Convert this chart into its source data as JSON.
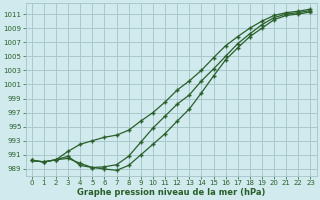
{
  "bg_color": "#d0eaee",
  "grid_color": "#aac8cc",
  "line_color": "#2a5f2a",
  "xlabel": "Graphe pression niveau de la mer (hPa)",
  "xlim": [
    -0.5,
    23.5
  ],
  "ylim": [
    988.0,
    1012.5
  ],
  "yticks": [
    989,
    991,
    993,
    995,
    997,
    999,
    1001,
    1003,
    1005,
    1007,
    1009,
    1011
  ],
  "xticks": [
    0,
    1,
    2,
    3,
    4,
    5,
    6,
    7,
    8,
    9,
    10,
    11,
    12,
    13,
    14,
    15,
    16,
    17,
    18,
    19,
    20,
    21,
    22,
    23
  ],
  "series1_x": [
    0,
    1,
    2,
    3,
    4,
    5,
    6,
    7,
    8,
    9,
    10,
    11,
    12,
    13,
    14,
    15,
    16,
    17,
    18,
    19,
    20,
    21,
    22,
    23
  ],
  "series1_y": [
    990.2,
    990.0,
    990.3,
    990.8,
    989.5,
    989.2,
    989.3,
    989.6,
    990.8,
    992.8,
    994.8,
    996.5,
    998.2,
    999.5,
    1001.5,
    1003.2,
    1005.0,
    1006.8,
    1008.2,
    1009.5,
    1010.5,
    1011.0,
    1011.2,
    1011.5
  ],
  "series2_x": [
    0,
    1,
    2,
    3,
    4,
    5,
    6,
    7,
    8,
    9,
    10,
    11,
    12,
    13,
    14,
    15,
    16,
    17,
    18,
    19,
    20,
    21,
    22,
    23
  ],
  "series2_y": [
    990.2,
    990.0,
    990.3,
    991.5,
    992.5,
    993.0,
    993.5,
    993.8,
    994.5,
    995.8,
    997.0,
    998.5,
    1000.2,
    1001.5,
    1003.0,
    1004.8,
    1006.5,
    1007.8,
    1009.0,
    1010.0,
    1010.8,
    1011.2,
    1011.4,
    1011.7
  ],
  "series3_x": [
    0,
    1,
    2,
    3,
    4,
    5,
    6,
    7,
    8,
    9,
    10,
    11,
    12,
    13,
    14,
    15,
    16,
    17,
    18,
    19,
    20,
    21,
    22,
    23
  ],
  "series3_y": [
    990.2,
    990.0,
    990.3,
    990.5,
    989.8,
    989.2,
    989.0,
    988.8,
    989.5,
    991.0,
    992.5,
    994.0,
    995.8,
    997.5,
    999.8,
    1002.2,
    1004.5,
    1006.2,
    1007.8,
    1009.0,
    1010.2,
    1010.8,
    1011.0,
    1011.3
  ]
}
